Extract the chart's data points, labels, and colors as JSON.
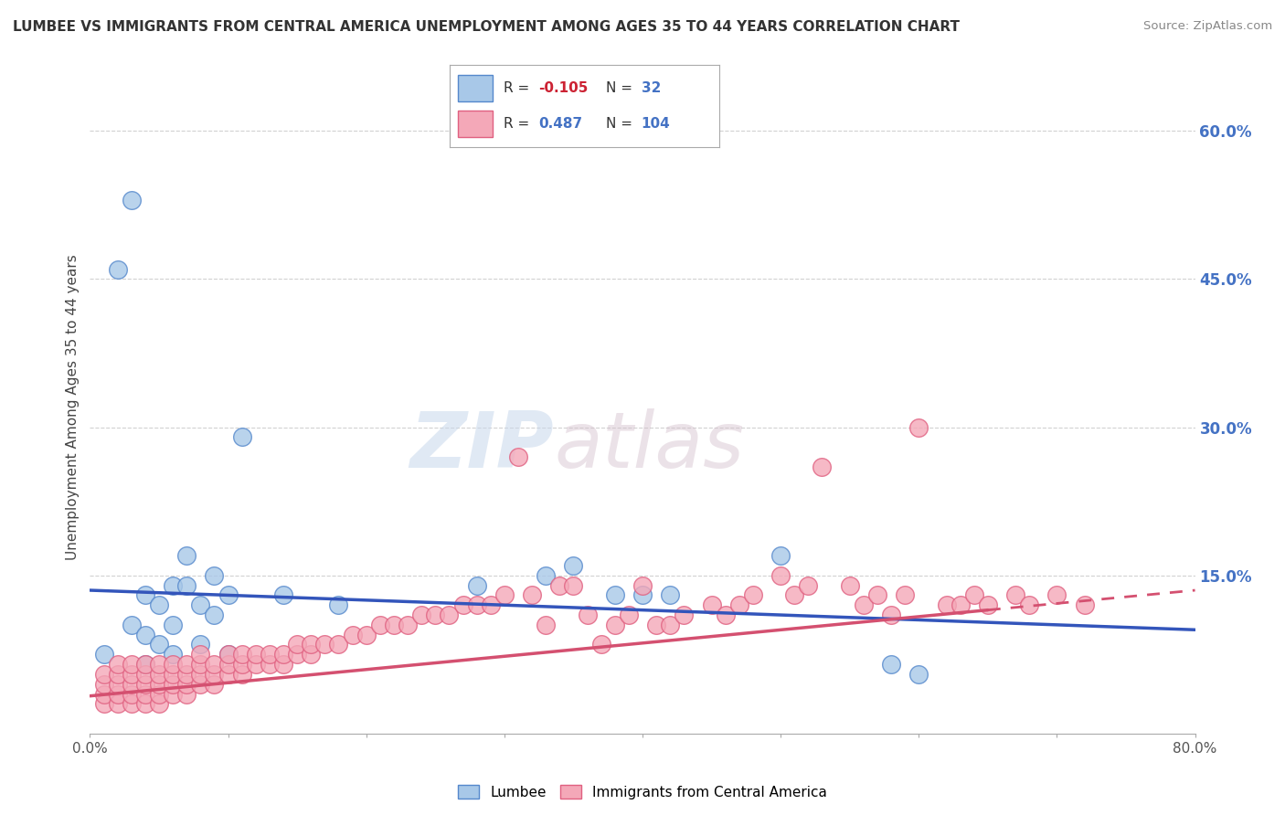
{
  "title": "LUMBEE VS IMMIGRANTS FROM CENTRAL AMERICA UNEMPLOYMENT AMONG AGES 35 TO 44 YEARS CORRELATION CHART",
  "source": "Source: ZipAtlas.com",
  "ylabel": "Unemployment Among Ages 35 to 44 years",
  "xlim": [
    0.0,
    0.8
  ],
  "ylim": [
    -0.01,
    0.65
  ],
  "yticks_right": [
    0.0,
    0.15,
    0.3,
    0.45,
    0.6
  ],
  "ytick_right_labels": [
    "",
    "15.0%",
    "30.0%",
    "45.0%",
    "60.0%"
  ],
  "lumbee_color": "#a8c8e8",
  "immigrant_color": "#f4a8b8",
  "lumbee_edge": "#5588cc",
  "immigrant_edge": "#e06080",
  "trend_lumbee_color": "#3355bb",
  "trend_immigrant_color": "#d45070",
  "watermark_zip": "ZIP",
  "watermark_atlas": "atlas",
  "background_color": "#ffffff",
  "grid_color": "#cccccc",
  "lumbee_x": [
    0.01,
    0.02,
    0.03,
    0.03,
    0.04,
    0.04,
    0.04,
    0.05,
    0.05,
    0.06,
    0.06,
    0.06,
    0.07,
    0.07,
    0.08,
    0.08,
    0.09,
    0.09,
    0.1,
    0.1,
    0.11,
    0.14,
    0.18,
    0.28,
    0.33,
    0.35,
    0.38,
    0.4,
    0.42,
    0.5,
    0.58,
    0.6
  ],
  "lumbee_y": [
    0.07,
    0.46,
    0.53,
    0.1,
    0.13,
    0.09,
    0.06,
    0.12,
    0.08,
    0.14,
    0.1,
    0.07,
    0.17,
    0.14,
    0.12,
    0.08,
    0.15,
    0.11,
    0.13,
    0.07,
    0.29,
    0.13,
    0.12,
    0.14,
    0.15,
    0.16,
    0.13,
    0.13,
    0.13,
    0.17,
    0.06,
    0.05
  ],
  "immigrant_x": [
    0.01,
    0.01,
    0.01,
    0.01,
    0.02,
    0.02,
    0.02,
    0.02,
    0.02,
    0.03,
    0.03,
    0.03,
    0.03,
    0.03,
    0.04,
    0.04,
    0.04,
    0.04,
    0.04,
    0.05,
    0.05,
    0.05,
    0.05,
    0.05,
    0.06,
    0.06,
    0.06,
    0.06,
    0.07,
    0.07,
    0.07,
    0.07,
    0.08,
    0.08,
    0.08,
    0.08,
    0.09,
    0.09,
    0.09,
    0.1,
    0.1,
    0.1,
    0.11,
    0.11,
    0.11,
    0.12,
    0.12,
    0.13,
    0.13,
    0.14,
    0.14,
    0.15,
    0.15,
    0.16,
    0.16,
    0.17,
    0.18,
    0.19,
    0.2,
    0.21,
    0.22,
    0.23,
    0.24,
    0.25,
    0.26,
    0.27,
    0.28,
    0.29,
    0.3,
    0.31,
    0.32,
    0.33,
    0.34,
    0.35,
    0.36,
    0.37,
    0.38,
    0.39,
    0.4,
    0.41,
    0.42,
    0.43,
    0.45,
    0.46,
    0.47,
    0.48,
    0.5,
    0.51,
    0.52,
    0.53,
    0.55,
    0.56,
    0.57,
    0.58,
    0.59,
    0.6,
    0.62,
    0.63,
    0.64,
    0.65,
    0.67,
    0.68,
    0.7,
    0.72
  ],
  "immigrant_y": [
    0.02,
    0.03,
    0.04,
    0.05,
    0.02,
    0.03,
    0.04,
    0.05,
    0.06,
    0.02,
    0.03,
    0.04,
    0.05,
    0.06,
    0.02,
    0.03,
    0.04,
    0.05,
    0.06,
    0.02,
    0.03,
    0.04,
    0.05,
    0.06,
    0.03,
    0.04,
    0.05,
    0.06,
    0.03,
    0.04,
    0.05,
    0.06,
    0.04,
    0.05,
    0.06,
    0.07,
    0.04,
    0.05,
    0.06,
    0.05,
    0.06,
    0.07,
    0.05,
    0.06,
    0.07,
    0.06,
    0.07,
    0.06,
    0.07,
    0.06,
    0.07,
    0.07,
    0.08,
    0.07,
    0.08,
    0.08,
    0.08,
    0.09,
    0.09,
    0.1,
    0.1,
    0.1,
    0.11,
    0.11,
    0.11,
    0.12,
    0.12,
    0.12,
    0.13,
    0.27,
    0.13,
    0.1,
    0.14,
    0.14,
    0.11,
    0.08,
    0.1,
    0.11,
    0.14,
    0.1,
    0.1,
    0.11,
    0.12,
    0.11,
    0.12,
    0.13,
    0.15,
    0.13,
    0.14,
    0.26,
    0.14,
    0.12,
    0.13,
    0.11,
    0.13,
    0.3,
    0.12,
    0.12,
    0.13,
    0.12,
    0.13,
    0.12,
    0.13,
    0.12
  ],
  "trend_lumbee_x0": 0.0,
  "trend_lumbee_y0": 0.135,
  "trend_lumbee_x1": 0.8,
  "trend_lumbee_y1": 0.095,
  "trend_imm_solid_x0": 0.0,
  "trend_imm_solid_y0": 0.028,
  "trend_imm_solid_x1": 0.65,
  "trend_imm_solid_y1": 0.115,
  "trend_imm_dash_x0": 0.65,
  "trend_imm_dash_y0": 0.115,
  "trend_imm_dash_x1": 0.8,
  "trend_imm_dash_y1": 0.135
}
